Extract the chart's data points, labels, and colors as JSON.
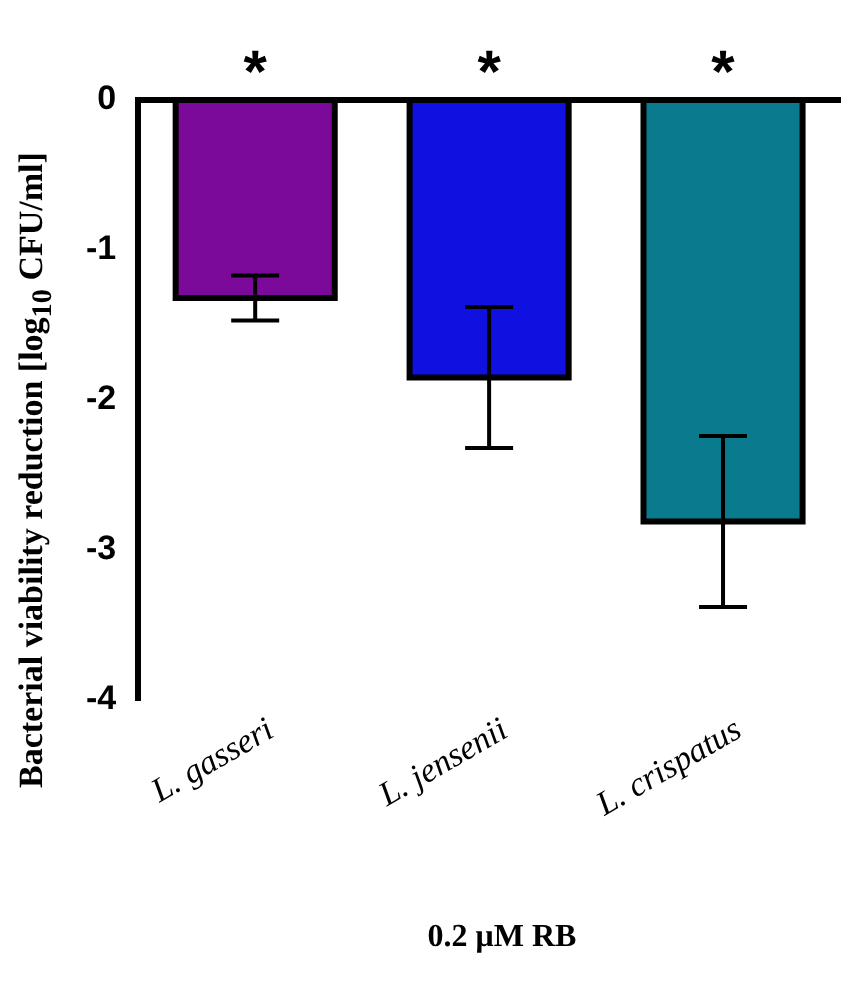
{
  "chart_data": {
    "type": "bar",
    "xlabel": "0.2 μM RB",
    "ylabel": "Bacterial viability reduction [log$_{10}$ CFU/ml]",
    "categories": [
      "L. gasseri",
      "L. jensenii",
      "L. crispatus"
    ],
    "values": [
      -1.32,
      -1.85,
      -2.81
    ],
    "colors": [
      "#7b0a9a",
      "#1010e0",
      "#0a7b8f"
    ],
    "errors": [
      0.15,
      0.47,
      0.57
    ],
    "ylim": [
      -4,
      0
    ],
    "yticks": [
      -4,
      -3,
      -2,
      -1,
      0
    ],
    "grid": false,
    "legend": false,
    "annotations": [
      "*",
      "*",
      "*"
    ]
  }
}
